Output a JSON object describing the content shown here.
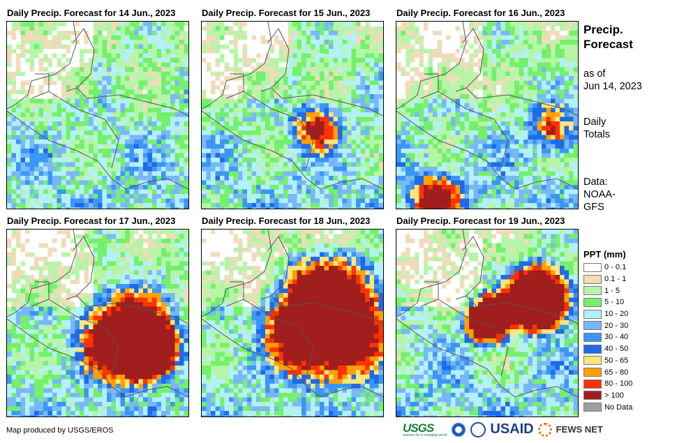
{
  "panels": [
    {
      "title": "Daily Precip. Forecast for 14 Jun., 2023",
      "intensity": 0
    },
    {
      "title": "Daily Precip. Forecast for 15 Jun., 2023",
      "intensity": 1
    },
    {
      "title": "Daily Precip. Forecast for 16 Jun., 2023",
      "intensity": 1
    },
    {
      "title": "Daily Precip. Forecast for 17 Jun., 2023",
      "intensity": 2
    },
    {
      "title": "Daily Precip. Forecast for 18 Jun., 2023",
      "intensity": 3
    },
    {
      "title": "Daily Precip. Forecast for 19 Jun., 2023",
      "intensity": 3
    }
  ],
  "side": {
    "heading1": "Precip.",
    "heading2": "Forecast",
    "asof1": "as of",
    "asof2": "Jun 14, 2023",
    "totals1": "Daily",
    "totals2": "Totals",
    "data1": "Data:",
    "data2": "NOAA-",
    "data3": "GFS"
  },
  "legend": {
    "title": "PPT (mm)",
    "items": [
      {
        "label": "0 - 0.1",
        "color": "#ffffff"
      },
      {
        "label": "0.1 - 1",
        "color": "#f0dcba"
      },
      {
        "label": "1 - 5",
        "color": "#b6f5a8"
      },
      {
        "label": "5 - 10",
        "color": "#74f06c"
      },
      {
        "label": "10 - 20",
        "color": "#b4f0f8"
      },
      {
        "label": "20 - 30",
        "color": "#78b8f8"
      },
      {
        "label": "30 - 40",
        "color": "#3c96f4"
      },
      {
        "label": "40 - 50",
        "color": "#1e6ae8"
      },
      {
        "label": "50 - 65",
        "color": "#ffe678"
      },
      {
        "label": "65 - 80",
        "color": "#ffa000"
      },
      {
        "label": "80 - 100",
        "color": "#ff3200"
      },
      {
        "label": "> 100",
        "color": "#a01e1e"
      },
      {
        "label": "No Data",
        "color": "#a0a0a0"
      }
    ]
  },
  "footer": {
    "credit": "Map produced by USGS/EROS",
    "logos": [
      "USGS",
      "NOAA",
      "USAID",
      "FEWS NET"
    ],
    "usgs_tagline": "science for a changing world"
  }
}
